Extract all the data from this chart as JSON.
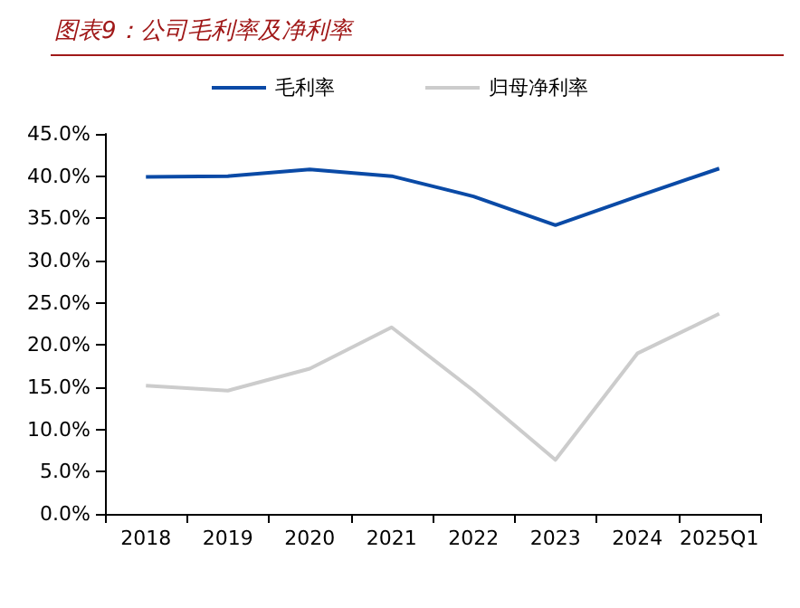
{
  "chart_data": {
    "type": "line",
    "title": "图表9：公司毛利率及净利率",
    "categories": [
      "2018",
      "2019",
      "2020",
      "2021",
      "2022",
      "2023",
      "2024",
      "2025Q1"
    ],
    "series": [
      {
        "name": "毛利率",
        "color": "#0a4aa6",
        "values": [
          39.9,
          40.0,
          40.8,
          40.0,
          37.6,
          34.2,
          37.6,
          40.9
        ]
      },
      {
        "name": "归母净利率",
        "color": "#cccccc",
        "values": [
          15.2,
          14.6,
          17.2,
          22.1,
          14.6,
          6.4,
          19.0,
          23.7
        ]
      }
    ],
    "ylim": [
      0,
      45
    ],
    "yticks": [
      {
        "value": 0,
        "label": "0.0%"
      },
      {
        "value": 5,
        "label": "5.0%"
      },
      {
        "value": 10,
        "label": "10.0%"
      },
      {
        "value": 15,
        "label": "15.0%"
      },
      {
        "value": 20,
        "label": "20.0%"
      },
      {
        "value": 25,
        "label": "25.0%"
      },
      {
        "value": 30,
        "label": "30.0%"
      },
      {
        "value": 35,
        "label": "35.0%"
      },
      {
        "value": 40,
        "label": "40.0%"
      },
      {
        "value": 45,
        "label": "45.0%"
      }
    ],
    "grid": false,
    "legend": "top",
    "marker": "none",
    "line_style": "solid"
  }
}
